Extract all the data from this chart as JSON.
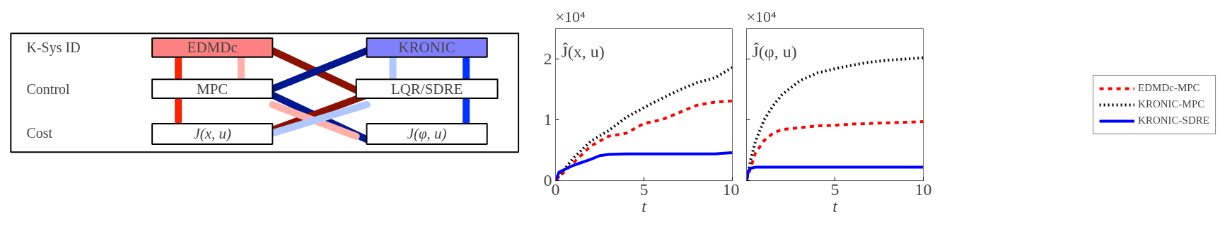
{
  "chart_data": [
    {
      "type": "other",
      "annotations": [
        "K-Sys ID",
        "Control",
        "Cost",
        "EDMDc",
        "KRONIC",
        "MPC",
        "LQR/SDRE",
        "J(x, u)",
        "J(φ, u)"
      ]
    },
    {
      "type": "line",
      "title": "Ĵ(x, u)",
      "xlabel": "t",
      "annotations": [
        "×10⁴"
      ],
      "xlim": [
        0,
        10
      ],
      "xticks": [
        0,
        5,
        10
      ],
      "ylim": [
        0,
        2.5
      ],
      "yticks": [
        0,
        1,
        2
      ],
      "legend": false,
      "series": [
        {
          "color": "#ff0000",
          "line_style": "dashed",
          "x": [
            0,
            1,
            2,
            3,
            4,
            5,
            6,
            7,
            8,
            9,
            10
          ],
          "values": [
            0,
            0.29,
            0.57,
            0.73,
            0.78,
            0.94,
            1.0,
            1.12,
            1.24,
            1.29,
            1.31
          ]
        },
        {
          "color": "#000000",
          "line_style": "dotted",
          "x": [
            0,
            1,
            2,
            3,
            4,
            5,
            6,
            7,
            8,
            9,
            10
          ],
          "values": [
            0,
            0.37,
            0.65,
            0.82,
            1.04,
            1.2,
            1.35,
            1.49,
            1.61,
            1.69,
            1.86
          ]
        },
        {
          "color": "#0000ff",
          "line_style": "solid",
          "x": [
            0,
            0.2,
            1,
            2,
            2.5,
            3,
            4,
            5,
            6,
            7,
            8,
            9,
            10
          ],
          "values": [
            0,
            0.14,
            0.25,
            0.35,
            0.41,
            0.43,
            0.44,
            0.44,
            0.44,
            0.44,
            0.44,
            0.44,
            0.46
          ]
        }
      ]
    },
    {
      "type": "line",
      "title": "Ĵ(φ, u)",
      "xlabel": "t",
      "annotations": [
        "×10⁴"
      ],
      "xlim": [
        0,
        10
      ],
      "xticks": [
        {
          "value": 0,
          "label": null
        },
        5,
        10
      ],
      "ylim": [
        0,
        2.5
      ],
      "yticks": [
        0,
        1,
        2
      ],
      "tick_labels": "x",
      "legend": "right",
      "series": [
        {
          "name": "EDMDc-MPC",
          "color": "#ff0000",
          "line_style": "dashed",
          "x": [
            0,
            0.5,
            1,
            1.5,
            2,
            3,
            4,
            5,
            6,
            7,
            8,
            9,
            10
          ],
          "values": [
            0,
            0.45,
            0.66,
            0.78,
            0.84,
            0.87,
            0.9,
            0.91,
            0.93,
            0.94,
            0.95,
            0.96,
            0.97
          ]
        },
        {
          "name": "KRONIC-MPC",
          "color": "#000000",
          "line_style": "dotted",
          "x": [
            0,
            0.25,
            0.5,
            1,
            1.5,
            2,
            3,
            4,
            5,
            6,
            7,
            8,
            9,
            10
          ],
          "values": [
            0,
            0.36,
            0.64,
            1.0,
            1.23,
            1.41,
            1.64,
            1.77,
            1.84,
            1.9,
            1.95,
            1.98,
            2.0,
            2.02
          ]
        },
        {
          "name": "KRONIC-SDRE",
          "color": "#0000ff",
          "line_style": "solid",
          "x": [
            0,
            0.1,
            0.2,
            0.5,
            10
          ],
          "values": [
            0,
            0.15,
            0.2,
            0.22,
            0.22
          ]
        }
      ]
    }
  ]
}
